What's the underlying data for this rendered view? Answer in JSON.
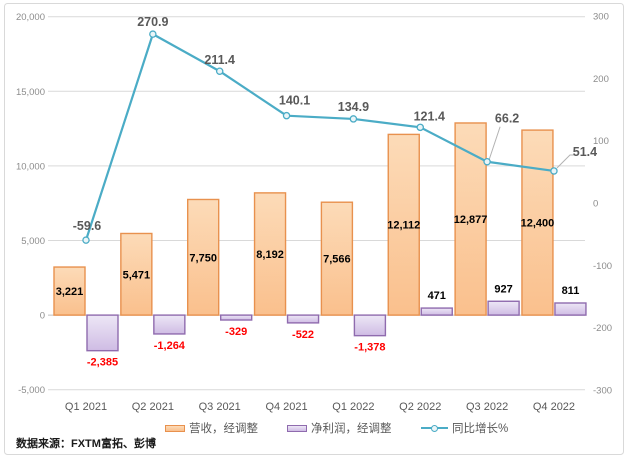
{
  "chart_data": {
    "type": "combo",
    "categories": [
      "Q1 2021",
      "Q2 2021",
      "Q3 2021",
      "Q4 2021",
      "Q1 2022",
      "Q2 2022",
      "Q3 2022",
      "Q4 2022"
    ],
    "series": [
      {
        "name": "营收，经调整",
        "type": "bar",
        "axis": "left",
        "values": [
          3221,
          5471,
          7750,
          8192,
          7566,
          12112,
          12877,
          12400
        ],
        "labels": [
          "3,221",
          "5,471",
          "7,750",
          "8,192",
          "7,566",
          "12,112",
          "12,877",
          "12,400"
        ],
        "fill_top": "#FCDBB8",
        "fill_bottom": "#FAC08D",
        "border": "#E8914E",
        "label_color": "#000000"
      },
      {
        "name": "净利润，经调整",
        "type": "bar",
        "axis": "left",
        "values": [
          -2385,
          -1264,
          -329,
          -522,
          -1378,
          471,
          927,
          811
        ],
        "labels": [
          "-2,385",
          "-1,264",
          "-329",
          "-522",
          "-1,378",
          "471",
          "927",
          "811"
        ],
        "fill_top": "#EDE7F6",
        "fill_bottom": "#CFBCE4",
        "border": "#8F6BAE",
        "label_color": "#000000",
        "negative_label_color": "#FF0000"
      },
      {
        "name": "同比增长%",
        "type": "line",
        "axis": "right",
        "values": [
          -59.6,
          270.9,
          211.4,
          140.1,
          134.9,
          121.4,
          66.2,
          51.4
        ],
        "labels": [
          "-59.6",
          "270.9",
          "211.4",
          "140.1",
          "134.9",
          "121.4",
          "66.2",
          "51.4"
        ],
        "color": "#4BACC6",
        "marker_fill": "#EAF5F8",
        "label_color": "#595959"
      }
    ],
    "left_axis": {
      "min": -5000,
      "max": 20000,
      "step": 5000,
      "tick_labels": [
        "20,000",
        "15,000",
        "10,000",
        "5,000",
        "0",
        "-5,000"
      ]
    },
    "right_axis": {
      "min": -300,
      "max": 300,
      "step": 100,
      "tick_labels": [
        "300",
        "200",
        "100",
        "0",
        "-100",
        "-200",
        "-300"
      ]
    },
    "gridlines": "horizontal",
    "legend_position": "bottom",
    "axis_tick_color": "#8C8C8C",
    "category_label_color": "#595959",
    "gridline_color": "#D9D9D9",
    "zero_line_color": "#BFBFBF",
    "leader_line_color": "#B3B3B3",
    "frame_color": "#D9D9D9"
  },
  "source_note": "数据来源：FXTM富拓、彭博"
}
